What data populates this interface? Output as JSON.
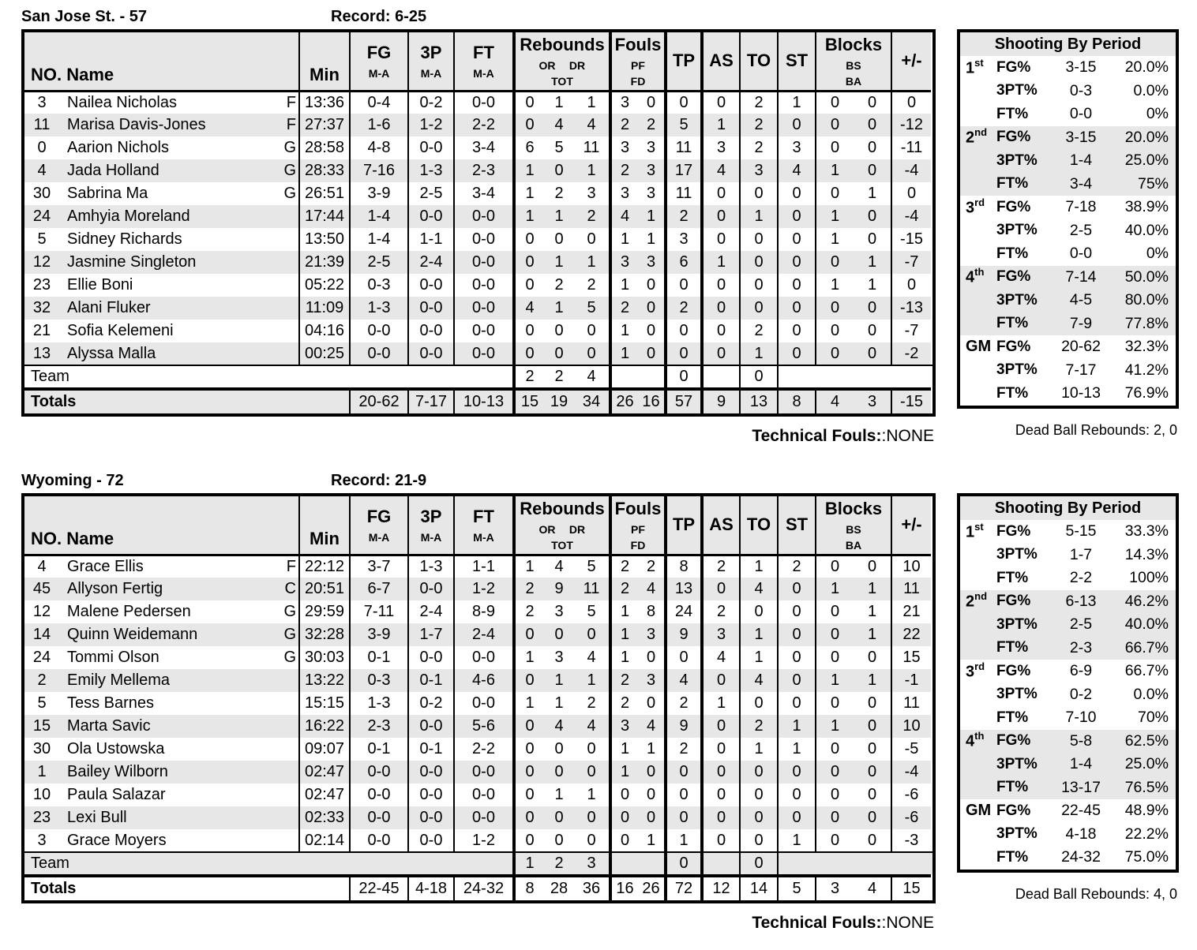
{
  "colors": {
    "row_stripe": "#e7e7e7",
    "border": "#000000",
    "background": "#ffffff"
  },
  "shooting_title": "Shooting By Period",
  "header": {
    "no_name": "NO. Name",
    "min": "Min",
    "fg": "FG",
    "p3": "3P",
    "ft": "FT",
    "ma": "M-A",
    "rebounds": "Rebounds",
    "or": "OR",
    "dr": "DR",
    "tot": "TOT",
    "fouls": "Fouls",
    "pf": "PF",
    "fd": "FD",
    "tp": "TP",
    "as": "AS",
    "to": "TO",
    "st": "ST",
    "blocks": "Blocks",
    "bs": "BS",
    "ba": "BA",
    "pm": "+/-",
    "team_label": "Team",
    "totals_label": "Totals"
  },
  "teams": [
    {
      "title": "San Jose St. - 57",
      "record": "Record: 6-25",
      "players": [
        {
          "no": "3",
          "name": "Nailea Nicholas",
          "pos": "F",
          "min": "13:36",
          "fg": "0-4",
          "p3": "0-2",
          "ft": "0-0",
          "or": "0",
          "dr": "1",
          "tot": "1",
          "pf": "3",
          "fd": "0",
          "tp": "0",
          "as": "0",
          "to": "2",
          "st": "1",
          "bs": "0",
          "ba": "0",
          "pm": "0"
        },
        {
          "no": "11",
          "name": "Marisa Davis-Jones",
          "pos": "F",
          "min": "27:37",
          "fg": "1-6",
          "p3": "1-2",
          "ft": "2-2",
          "or": "0",
          "dr": "4",
          "tot": "4",
          "pf": "2",
          "fd": "2",
          "tp": "5",
          "as": "1",
          "to": "2",
          "st": "0",
          "bs": "0",
          "ba": "0",
          "pm": "-12"
        },
        {
          "no": "0",
          "name": "Aarion Nichols",
          "pos": "G",
          "min": "28:58",
          "fg": "4-8",
          "p3": "0-0",
          "ft": "3-4",
          "or": "6",
          "dr": "5",
          "tot": "11",
          "pf": "3",
          "fd": "3",
          "tp": "11",
          "as": "3",
          "to": "2",
          "st": "3",
          "bs": "0",
          "ba": "0",
          "pm": "-11"
        },
        {
          "no": "4",
          "name": "Jada Holland",
          "pos": "G",
          "min": "28:33",
          "fg": "7-16",
          "p3": "1-3",
          "ft": "2-3",
          "or": "1",
          "dr": "0",
          "tot": "1",
          "pf": "2",
          "fd": "3",
          "tp": "17",
          "as": "4",
          "to": "3",
          "st": "4",
          "bs": "1",
          "ba": "0",
          "pm": "-4"
        },
        {
          "no": "30",
          "name": "Sabrina Ma",
          "pos": "G",
          "min": "26:51",
          "fg": "3-9",
          "p3": "2-5",
          "ft": "3-4",
          "or": "1",
          "dr": "2",
          "tot": "3",
          "pf": "3",
          "fd": "3",
          "tp": "11",
          "as": "0",
          "to": "0",
          "st": "0",
          "bs": "0",
          "ba": "1",
          "pm": "0"
        },
        {
          "no": "24",
          "name": "Amhyia Moreland",
          "pos": "",
          "min": "17:44",
          "fg": "1-4",
          "p3": "0-0",
          "ft": "0-0",
          "or": "1",
          "dr": "1",
          "tot": "2",
          "pf": "4",
          "fd": "1",
          "tp": "2",
          "as": "0",
          "to": "1",
          "st": "0",
          "bs": "1",
          "ba": "0",
          "pm": "-4"
        },
        {
          "no": "5",
          "name": "Sidney Richards",
          "pos": "",
          "min": "13:50",
          "fg": "1-4",
          "p3": "1-1",
          "ft": "0-0",
          "or": "0",
          "dr": "0",
          "tot": "0",
          "pf": "1",
          "fd": "1",
          "tp": "3",
          "as": "0",
          "to": "0",
          "st": "0",
          "bs": "1",
          "ba": "0",
          "pm": "-15"
        },
        {
          "no": "12",
          "name": "Jasmine Singleton",
          "pos": "",
          "min": "21:39",
          "fg": "2-5",
          "p3": "2-4",
          "ft": "0-0",
          "or": "0",
          "dr": "1",
          "tot": "1",
          "pf": "3",
          "fd": "3",
          "tp": "6",
          "as": "1",
          "to": "0",
          "st": "0",
          "bs": "0",
          "ba": "1",
          "pm": "-7"
        },
        {
          "no": "23",
          "name": "Ellie Boni",
          "pos": "",
          "min": "05:22",
          "fg": "0-3",
          "p3": "0-0",
          "ft": "0-0",
          "or": "0",
          "dr": "2",
          "tot": "2",
          "pf": "1",
          "fd": "0",
          "tp": "0",
          "as": "0",
          "to": "0",
          "st": "0",
          "bs": "1",
          "ba": "1",
          "pm": "0"
        },
        {
          "no": "32",
          "name": "Alani Fluker",
          "pos": "",
          "min": "11:09",
          "fg": "1-3",
          "p3": "0-0",
          "ft": "0-0",
          "or": "4",
          "dr": "1",
          "tot": "5",
          "pf": "2",
          "fd": "0",
          "tp": "2",
          "as": "0",
          "to": "0",
          "st": "0",
          "bs": "0",
          "ba": "0",
          "pm": "-13"
        },
        {
          "no": "21",
          "name": "Sofia Kelemeni",
          "pos": "",
          "min": "04:16",
          "fg": "0-0",
          "p3": "0-0",
          "ft": "0-0",
          "or": "0",
          "dr": "0",
          "tot": "0",
          "pf": "1",
          "fd": "0",
          "tp": "0",
          "as": "0",
          "to": "2",
          "st": "0",
          "bs": "0",
          "ba": "0",
          "pm": "-7"
        },
        {
          "no": "13",
          "name": "Alyssa Malla",
          "pos": "",
          "min": "00:25",
          "fg": "0-0",
          "p3": "0-0",
          "ft": "0-0",
          "or": "0",
          "dr": "0",
          "tot": "0",
          "pf": "1",
          "fd": "0",
          "tp": "0",
          "as": "0",
          "to": "1",
          "st": "0",
          "bs": "0",
          "ba": "0",
          "pm": "-2"
        }
      ],
      "team_row": {
        "or": "2",
        "dr": "2",
        "tot": "4",
        "tp": "0",
        "to": "0"
      },
      "totals": {
        "fg": "20-62",
        "p3": "7-17",
        "ft": "10-13",
        "or": "15",
        "dr": "19",
        "tot": "34",
        "pf": "26",
        "fd": "16",
        "tp": "57",
        "as": "9",
        "to": "13",
        "st": "8",
        "bs": "4",
        "ba": "3",
        "pm": "-15"
      },
      "tech_label": "Technical Fouls:",
      "tech_value": ":NONE",
      "shooting": {
        "dead_ball": "Dead Ball Rebounds: 2, 0",
        "periods": [
          {
            "base": "1",
            "sup": "st",
            "rows": [
              [
                "FG%",
                "3-15",
                "20.0%"
              ],
              [
                "3PT%",
                "0-3",
                "0.0%"
              ],
              [
                "FT%",
                "0-0",
                "0%"
              ]
            ]
          },
          {
            "base": "2",
            "sup": "nd",
            "rows": [
              [
                "FG%",
                "3-15",
                "20.0%"
              ],
              [
                "3PT%",
                "1-4",
                "25.0%"
              ],
              [
                "FT%",
                "3-4",
                "75%"
              ]
            ]
          },
          {
            "base": "3",
            "sup": "rd",
            "rows": [
              [
                "FG%",
                "7-18",
                "38.9%"
              ],
              [
                "3PT%",
                "2-5",
                "40.0%"
              ],
              [
                "FT%",
                "0-0",
                "0%"
              ]
            ]
          },
          {
            "base": "4",
            "sup": "th",
            "rows": [
              [
                "FG%",
                "7-14",
                "50.0%"
              ],
              [
                "3PT%",
                "4-5",
                "80.0%"
              ],
              [
                "FT%",
                "7-9",
                "77.8%"
              ]
            ]
          },
          {
            "base": "GM",
            "sup": "",
            "rows": [
              [
                "FG%",
                "20-62",
                "32.3%"
              ],
              [
                "3PT%",
                "7-17",
                "41.2%"
              ],
              [
                "FT%",
                "10-13",
                "76.9%"
              ]
            ]
          }
        ]
      }
    },
    {
      "title": "Wyoming - 72",
      "record": "Record: 21-9",
      "players": [
        {
          "no": "4",
          "name": "Grace Ellis",
          "pos": "F",
          "min": "22:12",
          "fg": "3-7",
          "p3": "1-3",
          "ft": "1-1",
          "or": "1",
          "dr": "4",
          "tot": "5",
          "pf": "2",
          "fd": "2",
          "tp": "8",
          "as": "2",
          "to": "1",
          "st": "2",
          "bs": "0",
          "ba": "0",
          "pm": "10"
        },
        {
          "no": "45",
          "name": "Allyson Fertig",
          "pos": "C",
          "min": "20:51",
          "fg": "6-7",
          "p3": "0-0",
          "ft": "1-2",
          "or": "2",
          "dr": "9",
          "tot": "11",
          "pf": "2",
          "fd": "4",
          "tp": "13",
          "as": "0",
          "to": "4",
          "st": "0",
          "bs": "1",
          "ba": "1",
          "pm": "11"
        },
        {
          "no": "12",
          "name": "Malene Pedersen",
          "pos": "G",
          "min": "29:59",
          "fg": "7-11",
          "p3": "2-4",
          "ft": "8-9",
          "or": "2",
          "dr": "3",
          "tot": "5",
          "pf": "1",
          "fd": "8",
          "tp": "24",
          "as": "2",
          "to": "0",
          "st": "0",
          "bs": "0",
          "ba": "1",
          "pm": "21"
        },
        {
          "no": "14",
          "name": "Quinn Weidemann",
          "pos": "G",
          "min": "32:28",
          "fg": "3-9",
          "p3": "1-7",
          "ft": "2-4",
          "or": "0",
          "dr": "0",
          "tot": "0",
          "pf": "1",
          "fd": "3",
          "tp": "9",
          "as": "3",
          "to": "1",
          "st": "0",
          "bs": "0",
          "ba": "1",
          "pm": "22"
        },
        {
          "no": "24",
          "name": "Tommi Olson",
          "pos": "G",
          "min": "30:03",
          "fg": "0-1",
          "p3": "0-0",
          "ft": "0-0",
          "or": "1",
          "dr": "3",
          "tot": "4",
          "pf": "1",
          "fd": "0",
          "tp": "0",
          "as": "4",
          "to": "1",
          "st": "0",
          "bs": "0",
          "ba": "0",
          "pm": "15"
        },
        {
          "no": "2",
          "name": "Emily Mellema",
          "pos": "",
          "min": "13:22",
          "fg": "0-3",
          "p3": "0-1",
          "ft": "4-6",
          "or": "0",
          "dr": "1",
          "tot": "1",
          "pf": "2",
          "fd": "3",
          "tp": "4",
          "as": "0",
          "to": "4",
          "st": "0",
          "bs": "1",
          "ba": "1",
          "pm": "-1"
        },
        {
          "no": "5",
          "name": "Tess Barnes",
          "pos": "",
          "min": "15:15",
          "fg": "1-3",
          "p3": "0-2",
          "ft": "0-0",
          "or": "1",
          "dr": "1",
          "tot": "2",
          "pf": "2",
          "fd": "0",
          "tp": "2",
          "as": "1",
          "to": "0",
          "st": "0",
          "bs": "0",
          "ba": "0",
          "pm": "11"
        },
        {
          "no": "15",
          "name": "Marta Savic",
          "pos": "",
          "min": "16:22",
          "fg": "2-3",
          "p3": "0-0",
          "ft": "5-6",
          "or": "0",
          "dr": "4",
          "tot": "4",
          "pf": "3",
          "fd": "4",
          "tp": "9",
          "as": "0",
          "to": "2",
          "st": "1",
          "bs": "1",
          "ba": "0",
          "pm": "10"
        },
        {
          "no": "30",
          "name": "Ola Ustowska",
          "pos": "",
          "min": "09:07",
          "fg": "0-1",
          "p3": "0-1",
          "ft": "2-2",
          "or": "0",
          "dr": "0",
          "tot": "0",
          "pf": "1",
          "fd": "1",
          "tp": "2",
          "as": "0",
          "to": "1",
          "st": "1",
          "bs": "0",
          "ba": "0",
          "pm": "-5"
        },
        {
          "no": "1",
          "name": "Bailey Wilborn",
          "pos": "",
          "min": "02:47",
          "fg": "0-0",
          "p3": "0-0",
          "ft": "0-0",
          "or": "0",
          "dr": "0",
          "tot": "0",
          "pf": "1",
          "fd": "0",
          "tp": "0",
          "as": "0",
          "to": "0",
          "st": "0",
          "bs": "0",
          "ba": "0",
          "pm": "-4"
        },
        {
          "no": "10",
          "name": "Paula Salazar",
          "pos": "",
          "min": "02:47",
          "fg": "0-0",
          "p3": "0-0",
          "ft": "0-0",
          "or": "0",
          "dr": "1",
          "tot": "1",
          "pf": "0",
          "fd": "0",
          "tp": "0",
          "as": "0",
          "to": "0",
          "st": "0",
          "bs": "0",
          "ba": "0",
          "pm": "-6"
        },
        {
          "no": "23",
          "name": "Lexi Bull",
          "pos": "",
          "min": "02:33",
          "fg": "0-0",
          "p3": "0-0",
          "ft": "0-0",
          "or": "0",
          "dr": "0",
          "tot": "0",
          "pf": "0",
          "fd": "0",
          "tp": "0",
          "as": "0",
          "to": "0",
          "st": "0",
          "bs": "0",
          "ba": "0",
          "pm": "-6"
        },
        {
          "no": "3",
          "name": "Grace Moyers",
          "pos": "",
          "min": "02:14",
          "fg": "0-0",
          "p3": "0-0",
          "ft": "1-2",
          "or": "0",
          "dr": "0",
          "tot": "0",
          "pf": "0",
          "fd": "1",
          "tp": "1",
          "as": "0",
          "to": "0",
          "st": "1",
          "bs": "0",
          "ba": "0",
          "pm": "-3"
        }
      ],
      "team_row": {
        "or": "1",
        "dr": "2",
        "tot": "3",
        "tp": "0",
        "to": "0"
      },
      "totals": {
        "fg": "22-45",
        "p3": "4-18",
        "ft": "24-32",
        "or": "8",
        "dr": "28",
        "tot": "36",
        "pf": "16",
        "fd": "26",
        "tp": "72",
        "as": "12",
        "to": "14",
        "st": "5",
        "bs": "3",
        "ba": "4",
        "pm": "15"
      },
      "tech_label": "Technical Fouls:",
      "tech_value": ":NONE",
      "shooting": {
        "dead_ball": "Dead Ball Rebounds: 4, 0",
        "periods": [
          {
            "base": "1",
            "sup": "st",
            "rows": [
              [
                "FG%",
                "5-15",
                "33.3%"
              ],
              [
                "3PT%",
                "1-7",
                "14.3%"
              ],
              [
                "FT%",
                "2-2",
                "100%"
              ]
            ]
          },
          {
            "base": "2",
            "sup": "nd",
            "rows": [
              [
                "FG%",
                "6-13",
                "46.2%"
              ],
              [
                "3PT%",
                "2-5",
                "40.0%"
              ],
              [
                "FT%",
                "2-3",
                "66.7%"
              ]
            ]
          },
          {
            "base": "3",
            "sup": "rd",
            "rows": [
              [
                "FG%",
                "6-9",
                "66.7%"
              ],
              [
                "3PT%",
                "0-2",
                "0.0%"
              ],
              [
                "FT%",
                "7-10",
                "70%"
              ]
            ]
          },
          {
            "base": "4",
            "sup": "th",
            "rows": [
              [
                "FG%",
                "5-8",
                "62.5%"
              ],
              [
                "3PT%",
                "1-4",
                "25.0%"
              ],
              [
                "FT%",
                "13-17",
                "76.5%"
              ]
            ]
          },
          {
            "base": "GM",
            "sup": "",
            "rows": [
              [
                "FG%",
                "22-45",
                "48.9%"
              ],
              [
                "3PT%",
                "4-18",
                "22.2%"
              ],
              [
                "FT%",
                "24-32",
                "75.0%"
              ]
            ]
          }
        ]
      }
    }
  ]
}
